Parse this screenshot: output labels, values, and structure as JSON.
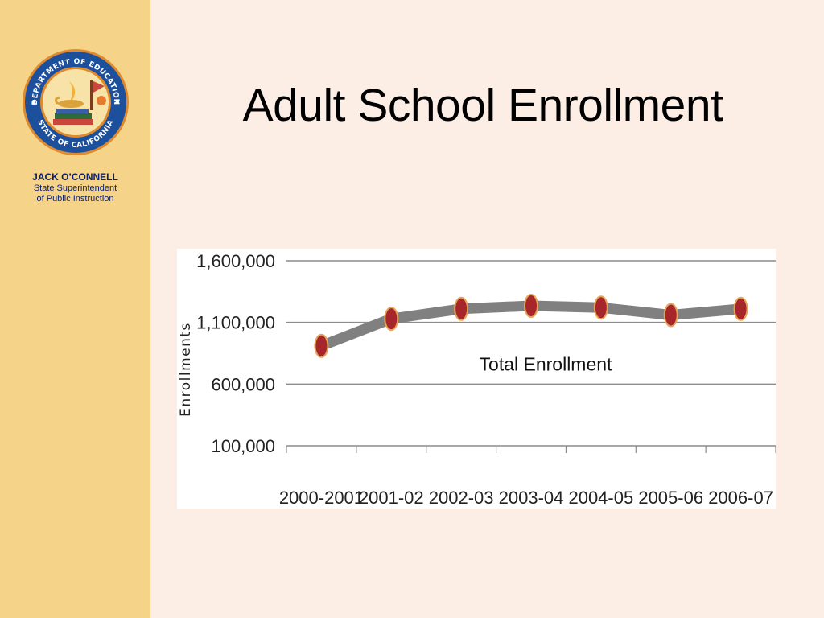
{
  "slide": {
    "title": "Adult School Enrollment"
  },
  "sidebar": {
    "seal_text_top": "DEPARTMENT OF EDUCATION",
    "seal_text_bottom": "STATE OF CALIFORNIA",
    "name": "JACK O’CONNELL",
    "role_line1": "State Superintendent",
    "role_line2": "of Public Instruction"
  },
  "colors": {
    "sidebar_bg": "#f5d389",
    "slide_bg": "#fceee4",
    "line_color": "#808080",
    "marker_fill": "#a6262a",
    "marker_edge": "#e6a65a",
    "caption_color": "#0a1f6e"
  },
  "chart_data": {
    "type": "line",
    "title": "",
    "ylabel": "Enrollments",
    "xlabel": "",
    "categories": [
      "2000-2001",
      "2001-02",
      "2002-03",
      "2003-04",
      "2004-05",
      "2005-06",
      "2006-07"
    ],
    "series": [
      {
        "values": [
          910000,
          1130000,
          1210000,
          1235000,
          1220000,
          1160000,
          1210000
        ]
      }
    ],
    "annotation": "Total Enrollment",
    "ylim": [
      100000,
      1600000
    ],
    "yticks": [
      100000,
      600000,
      1100000,
      1600000
    ],
    "ytick_labels": [
      "100,000",
      "600,000",
      "1,100,000",
      "1,600,000"
    ],
    "grid": true,
    "legend": "none"
  }
}
